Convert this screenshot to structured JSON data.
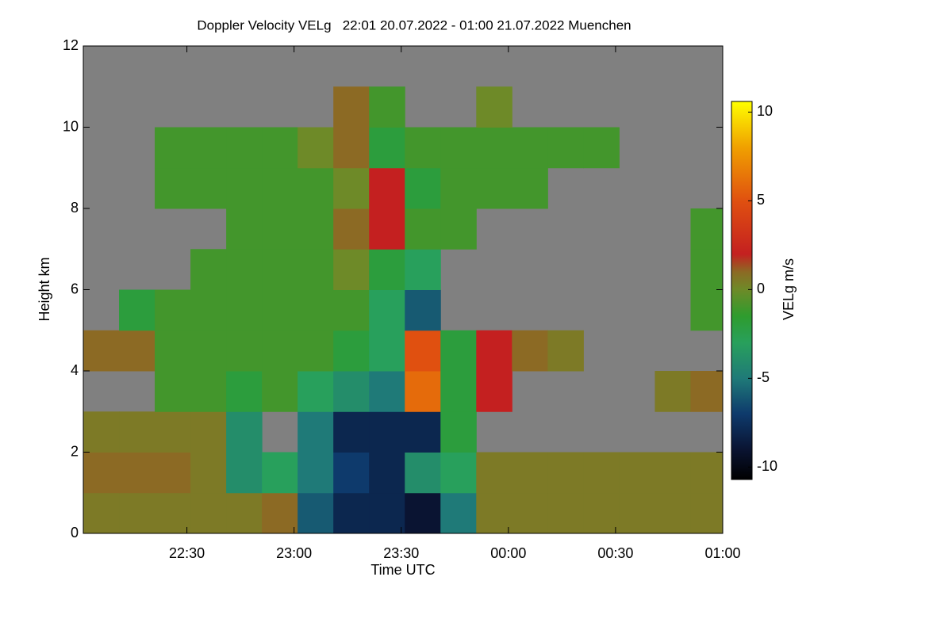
{
  "chart_data": {
    "type": "heatmap",
    "title": "Doppler Velocity VELg   22:01 20.07.2022 - 01:00 21.07.2022 Muenchen",
    "x_label": "Time UTC",
    "y_label": "Height km",
    "colorbar_label": "VELg m/s",
    "xlim": [
      "22:01",
      "01:00"
    ],
    "xticks": [
      "22:30",
      "23:00",
      "23:30",
      "00:00",
      "00:30",
      "01:00"
    ],
    "ylim": [
      0,
      12
    ],
    "yticks": [
      0,
      2,
      4,
      6,
      8,
      10,
      12
    ],
    "clim": [
      -10.7,
      10.6
    ],
    "cticks": [
      -10,
      -5,
      0,
      5,
      10
    ],
    "background_color": "#808080",
    "colormap": [
      {
        "value": -10.7,
        "color": "#000000"
      },
      {
        "value": -9,
        "color": "#0a1432"
      },
      {
        "value": -7,
        "color": "#0e3a6c"
      },
      {
        "value": -5,
        "color": "#1f7a78"
      },
      {
        "value": -3,
        "color": "#28a05c"
      },
      {
        "value": -1.5,
        "color": "#2e9c2e"
      },
      {
        "value": 0,
        "color": "#6e8a28"
      },
      {
        "value": 1,
        "color": "#8c6a24"
      },
      {
        "value": 2,
        "color": "#c42020"
      },
      {
        "value": 5,
        "color": "#e05010"
      },
      {
        "value": 8,
        "color": "#f0a000"
      },
      {
        "value": 10.6,
        "color": "#ffff00"
      }
    ],
    "xbins": [
      "22:01",
      "22:11",
      "22:21",
      "22:31",
      "22:41",
      "22:51",
      "23:01",
      "23:11",
      "23:21",
      "23:31",
      "23:41",
      "23:51",
      "00:01",
      "00:11",
      "00:21",
      "00:31",
      "00:41",
      "00:51",
      "01:00"
    ],
    "ybins": [
      0,
      1,
      2,
      3,
      4,
      5,
      6,
      7,
      8,
      9,
      10,
      11,
      12
    ],
    "z": [
      [
        0.5,
        0.5,
        0.5,
        0.5,
        0.5,
        1,
        -6,
        -8,
        -8,
        -9,
        -5,
        0.5,
        0.5,
        0.5,
        0.5,
        0.5,
        0.5,
        0.5
      ],
      [
        1,
        1,
        1,
        0.5,
        -4,
        -3,
        -5,
        -7,
        -8,
        -4,
        -3,
        0.5,
        0.5,
        0.5,
        0.5,
        0.5,
        0.5,
        0.5
      ],
      [
        0.5,
        0.5,
        0.5,
        0.5,
        -4,
        null,
        -5,
        -8,
        -8,
        -8,
        -2,
        null,
        null,
        null,
        null,
        null,
        null,
        null
      ],
      [
        null,
        null,
        -1,
        -1,
        -2,
        -1,
        -3,
        -4,
        -5,
        6,
        -2,
        2,
        null,
        null,
        null,
        null,
        0.5,
        1
      ],
      [
        1,
        1,
        -1,
        -1,
        -1,
        -1,
        -1,
        -2,
        -3,
        5,
        -2,
        2,
        1,
        0.5,
        null,
        null,
        null,
        null
      ],
      [
        null,
        -2,
        -1,
        -1,
        -1,
        -1,
        -1,
        -1,
        -3,
        -6,
        null,
        null,
        null,
        null,
        null,
        null,
        null,
        -1
      ],
      [
        null,
        null,
        null,
        -1,
        -1,
        -1,
        -1,
        0,
        -2,
        -3,
        null,
        null,
        null,
        null,
        null,
        null,
        null,
        -1
      ],
      [
        null,
        null,
        null,
        null,
        -1,
        -1,
        -1,
        1,
        2,
        -1,
        -1,
        null,
        null,
        null,
        null,
        null,
        null,
        -1
      ],
      [
        null,
        null,
        -1,
        -1,
        -1,
        -1,
        -1,
        0,
        2,
        -2,
        -1,
        -1,
        -1,
        null,
        null,
        null,
        null,
        null
      ],
      [
        null,
        null,
        -1,
        -1,
        -1,
        -1,
        0,
        1,
        -2,
        -1,
        -1,
        -1,
        -1,
        -1,
        -1,
        null,
        null,
        null
      ],
      [
        null,
        null,
        null,
        null,
        null,
        null,
        null,
        1,
        -1,
        null,
        null,
        0,
        null,
        null,
        null,
        null,
        null,
        null
      ],
      [
        null,
        null,
        null,
        null,
        null,
        null,
        null,
        null,
        null,
        null,
        null,
        null,
        null,
        null,
        null,
        null,
        null,
        null
      ]
    ]
  }
}
